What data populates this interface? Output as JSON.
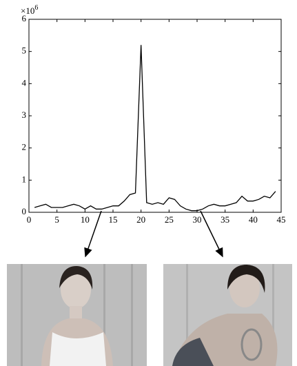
{
  "chart_data": {
    "type": "line",
    "y_scale_base": "×10",
    "y_scale_exponent": "6",
    "x": [
      1,
      2,
      3,
      4,
      5,
      6,
      7,
      8,
      9,
      10,
      11,
      12,
      13,
      14,
      15,
      16,
      17,
      18,
      19,
      20,
      21,
      22,
      23,
      24,
      25,
      26,
      27,
      28,
      29,
      30,
      31,
      32,
      33,
      34,
      35,
      36,
      37,
      38,
      39,
      40,
      41,
      42,
      43,
      44
    ],
    "values": [
      0.15,
      0.2,
      0.25,
      0.15,
      0.15,
      0.15,
      0.2,
      0.25,
      0.2,
      0.1,
      0.2,
      0.1,
      0.1,
      0.15,
      0.2,
      0.2,
      0.35,
      0.55,
      0.6,
      5.2,
      0.3,
      0.25,
      0.3,
      0.25,
      0.45,
      0.4,
      0.2,
      0.1,
      0.05,
      0.05,
      0.1,
      0.2,
      0.25,
      0.2,
      0.2,
      0.25,
      0.3,
      0.5,
      0.35,
      0.35,
      0.4,
      0.5,
      0.45,
      0.65
    ],
    "color": "#000000",
    "xlim": [
      0,
      45
    ],
    "xticks": [
      0,
      5,
      10,
      15,
      20,
      25,
      30,
      35,
      40,
      45
    ],
    "ylim": [
      0,
      6
    ],
    "yticks": [
      0,
      1,
      2,
      3,
      4,
      5,
      6
    ]
  }
}
